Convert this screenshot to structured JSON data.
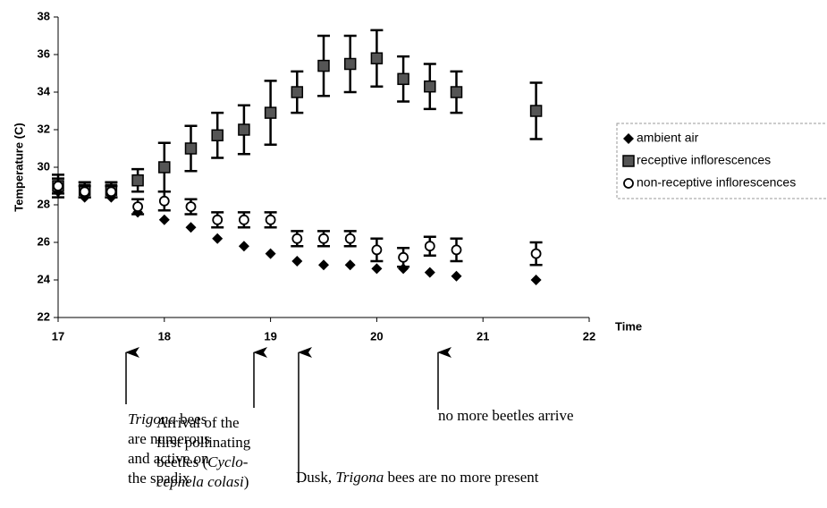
{
  "chart_data": {
    "type": "scatter",
    "x_label": "Time",
    "y_label": "Temperature (C)",
    "x": [
      17,
      17.25,
      17.5,
      17.75,
      18,
      18.25,
      18.5,
      18.75,
      19,
      19.25,
      19.5,
      19.75,
      20,
      20.25,
      20.5,
      20.75,
      21.5
    ],
    "xlim": [
      17,
      22
    ],
    "xticks": [
      17,
      18,
      19,
      20,
      21,
      22
    ],
    "ylim": [
      22,
      38
    ],
    "yticks": [
      22,
      24,
      26,
      28,
      30,
      32,
      34,
      36,
      38
    ],
    "series": [
      {
        "name": "ambient air",
        "color": "#000000",
        "marker": "diamond",
        "values": [
          28.7,
          28.4,
          28.4,
          27.6,
          27.2,
          26.8,
          26.2,
          25.8,
          25.4,
          25.0,
          24.8,
          24.8,
          24.6,
          24.6,
          24.4,
          24.2,
          24.0
        ]
      },
      {
        "name": "receptive inflorescences",
        "color": "#000000",
        "marker": "square",
        "values": [
          29.0,
          28.8,
          28.8,
          29.3,
          30.0,
          31.0,
          31.7,
          32.0,
          32.9,
          34.0,
          35.4,
          35.5,
          35.8,
          34.7,
          34.3,
          34.0,
          33.0
        ],
        "errors": [
          0.6,
          0.4,
          0.4,
          0.6,
          1.3,
          1.2,
          1.2,
          1.3,
          1.7,
          1.1,
          1.6,
          1.5,
          1.5,
          1.2,
          1.2,
          1.1,
          1.5
        ]
      },
      {
        "name": "non-receptive inflorescences",
        "color": "#000000",
        "marker": "circle",
        "values": [
          29.0,
          28.7,
          28.7,
          27.9,
          28.2,
          27.9,
          27.2,
          27.2,
          27.2,
          26.2,
          26.2,
          26.2,
          25.6,
          25.2,
          25.8,
          25.6,
          25.4
        ],
        "errors": [
          0.4,
          0.3,
          0.3,
          0.4,
          0.5,
          0.4,
          0.4,
          0.4,
          0.4,
          0.4,
          0.4,
          0.4,
          0.6,
          0.5,
          0.5,
          0.6,
          0.6
        ]
      }
    ],
    "legend": "right",
    "annotations": [
      {
        "lines": [
          [
            {
              "text": "Trigona",
              "italic": true
            },
            {
              "text": " bees"
            }
          ],
          [
            {
              "text": "are numerous"
            }
          ],
          [
            {
              "text": "and active on"
            }
          ],
          [
            {
              "text": "the spadix"
            }
          ]
        ]
      },
      {
        "lines": [
          [
            {
              "text": "Arrival of the"
            }
          ],
          [
            {
              "text": "first pollinating"
            }
          ],
          [
            {
              "text": "beetles ("
            },
            {
              "text": "Cyclo-",
              "italic": true
            }
          ],
          [
            {
              "text": "cephela colasi",
              "italic": true
            },
            {
              "text": ")"
            }
          ]
        ]
      },
      {
        "lines": [
          [
            {
              "text": "Dusk, "
            },
            {
              "text": "Trigona",
              "italic": true
            },
            {
              "text": " bees are no more present"
            }
          ]
        ]
      },
      {
        "lines": [
          [
            {
              "text": "no more beetles arrive"
            }
          ]
        ]
      }
    ]
  }
}
